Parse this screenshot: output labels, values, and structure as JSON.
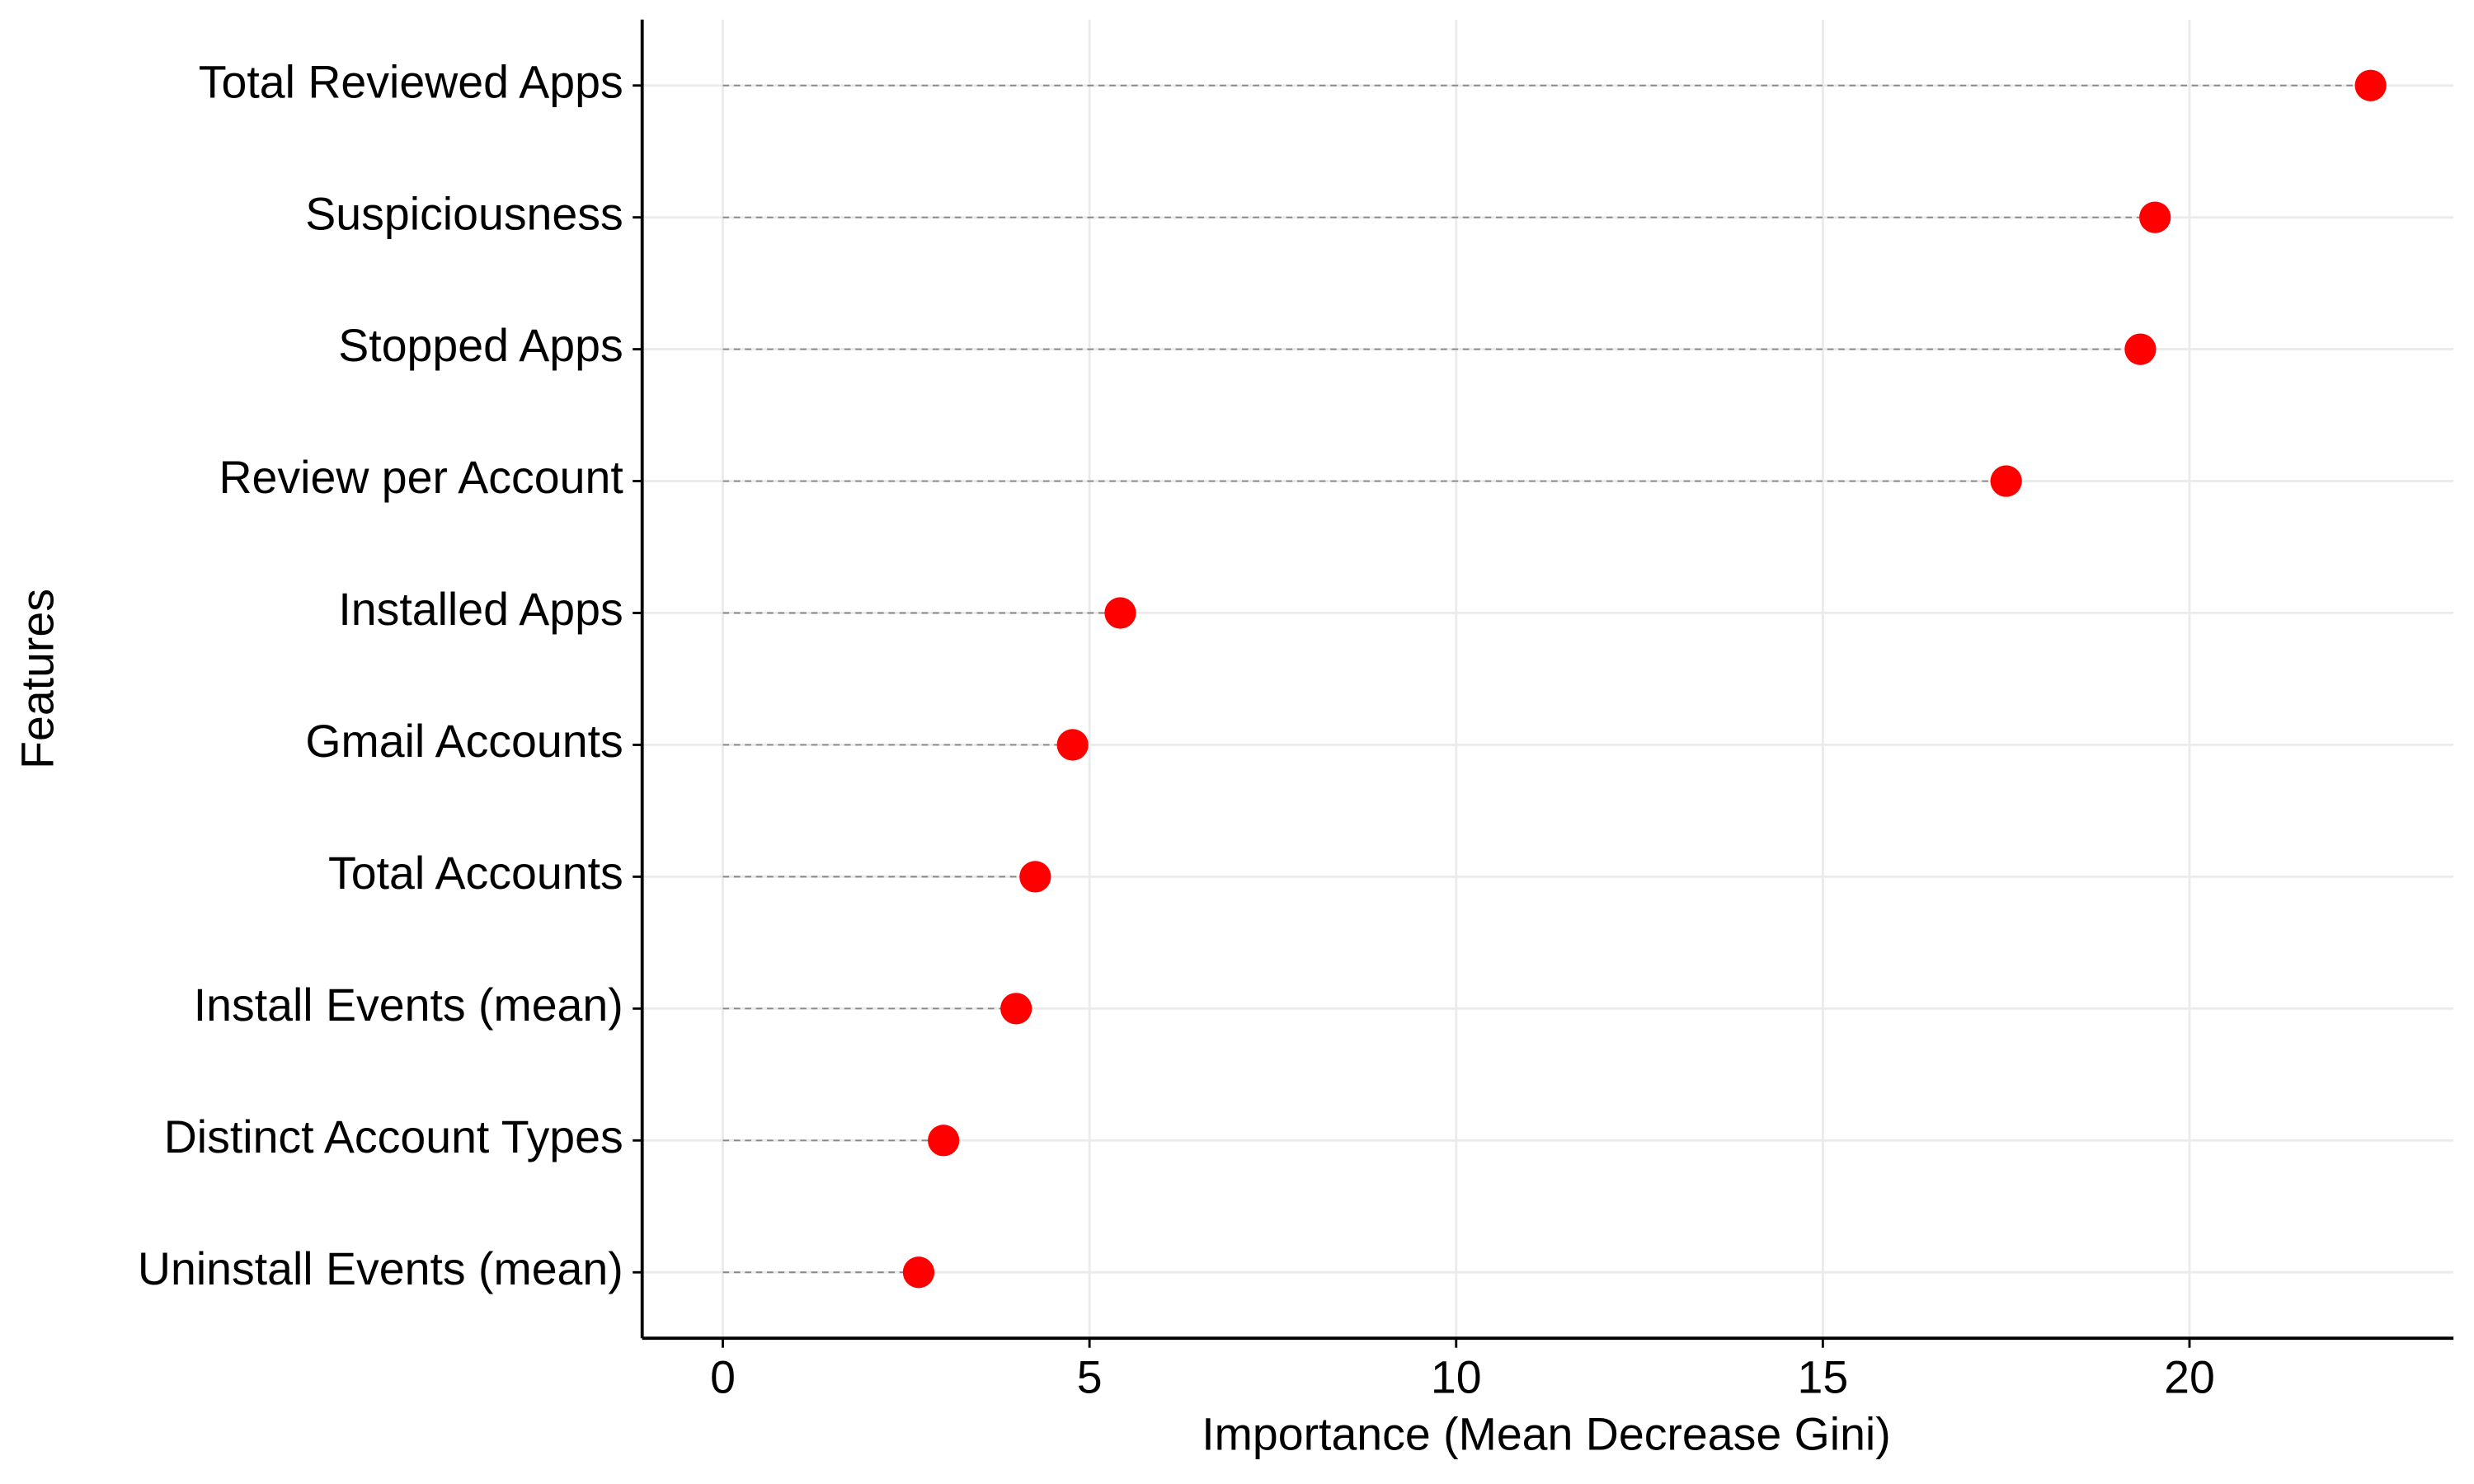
{
  "chart_data": {
    "type": "lollipop",
    "x_label": "Importance (Mean Decrease Gini)",
    "y_label": "Features",
    "categories": [
      "Total Reviewed Apps",
      "Suspiciousness",
      "Stopped Apps",
      "Review per Account",
      "Installed Apps",
      "Gmail Accounts",
      "Total Accounts",
      "Install Events (mean)",
      "Distinct Account Types",
      "Uninstall Events (mean)"
    ],
    "values": [
      22.47,
      19.53,
      19.33,
      17.5,
      5.42,
      4.77,
      4.26,
      4.0,
      3.01,
      2.67
    ],
    "color": "#ff0000",
    "xlim": [
      -1.1,
      23.6
    ],
    "xticks": [
      0,
      5,
      10,
      15,
      20
    ],
    "grid": true
  }
}
